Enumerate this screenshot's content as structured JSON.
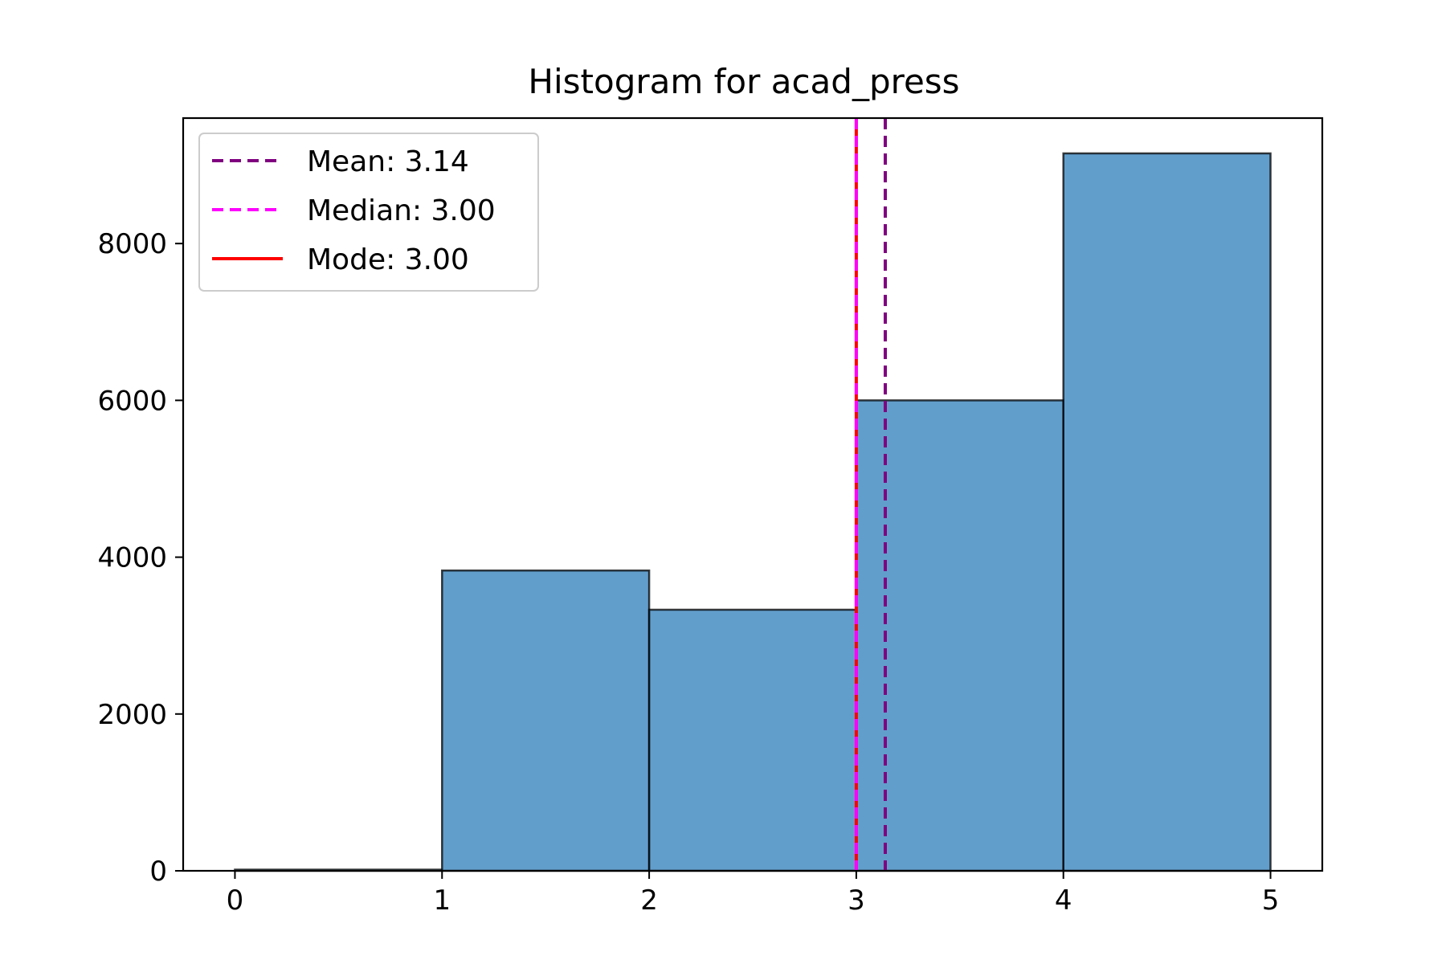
{
  "chart_data": {
    "type": "bar",
    "title": "Histogram for acad_press",
    "xlabel": "",
    "ylabel": "",
    "bins": [
      {
        "start": 0,
        "end": 1,
        "count": 15
      },
      {
        "start": 1,
        "end": 2,
        "count": 3830
      },
      {
        "start": 2,
        "end": 3,
        "count": 3330
      },
      {
        "start": 3,
        "end": 4,
        "count": 6000
      },
      {
        "start": 4,
        "end": 5,
        "count": 9150
      }
    ],
    "xlim": [
      -0.25,
      5.25
    ],
    "ylim": [
      0,
      9600
    ],
    "xticks": [
      0,
      1,
      2,
      3,
      4,
      5
    ],
    "yticks": [
      0,
      2000,
      4000,
      6000,
      8000
    ],
    "grid": false,
    "legend_position": "top-left",
    "bar_color": "#2678b8",
    "bar_edge_color": "#000000",
    "reference_lines": [
      {
        "name": "Mean",
        "label": "Mean: 3.14",
        "value": 3.14,
        "color": "#800080",
        "style": "dashed"
      },
      {
        "name": "Median",
        "label": "Median: 3.00",
        "value": 3.0,
        "color": "#ff00ff",
        "style": "dashed"
      },
      {
        "name": "Mode",
        "label": "Mode: 3.00",
        "value": 3.0,
        "color": "#ff0000",
        "style": "solid"
      }
    ]
  }
}
